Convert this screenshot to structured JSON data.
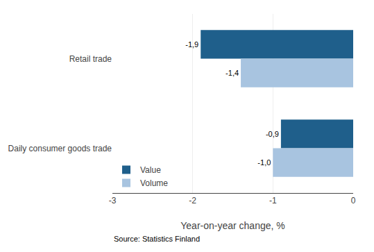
{
  "chart_data": {
    "type": "bar",
    "orientation": "horizontal",
    "categories": [
      "Daily consumer goods trade",
      "Retail trade"
    ],
    "series": [
      {
        "name": "Value",
        "color": "#1F5F8B",
        "values": [
          -0.9,
          -1.9
        ],
        "value_labels": [
          "-0,9",
          "-1,9"
        ]
      },
      {
        "name": "Volume",
        "color": "#A8C4E0",
        "values": [
          -1.0,
          -1.4
        ],
        "value_labels": [
          "-1,0",
          "-1,4"
        ]
      }
    ],
    "xlabel": "Year-on-year change, %",
    "xlim": [
      -3,
      0
    ],
    "xticks": [
      -3,
      -2,
      -1,
      0
    ],
    "grid": true,
    "legend": "lower left",
    "data_labels": true,
    "annotations": [
      "Source: Statistics Finland"
    ]
  }
}
